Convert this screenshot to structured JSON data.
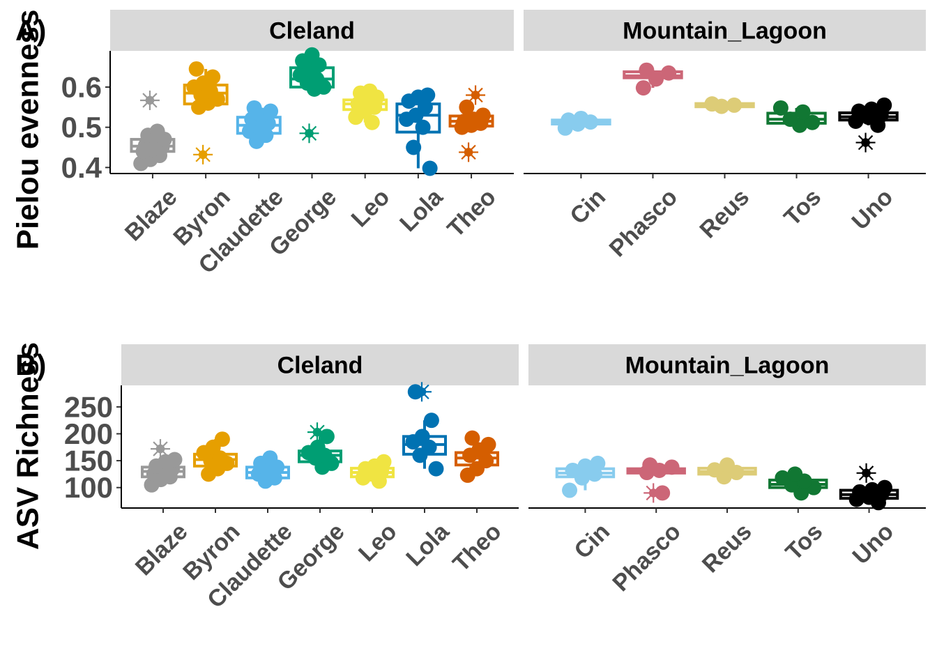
{
  "chart_data": [
    {
      "type": "boxplot",
      "tag": "A)",
      "ylabel": "Pielou evenness",
      "ylim": [
        0.385,
        0.69
      ],
      "yticks": [
        0.4,
        0.5,
        0.6
      ],
      "ytick_labels": [
        "0.4",
        "0.5",
        "0.6"
      ],
      "facets": [
        {
          "name": "Cleland",
          "groups": [
            {
              "name": "Blaze",
              "color": "#999999",
              "q1": 0.44,
              "median": 0.453,
              "q3": 0.47,
              "whisker_low": 0.41,
              "whisker_high": 0.49,
              "points": [
                0.41,
                0.42,
                0.43,
                0.44,
                0.445,
                0.45,
                0.455,
                0.46,
                0.47,
                0.48,
                0.49
              ],
              "outliers": [
                0.567
              ]
            },
            {
              "name": "Byron",
              "color": "#E69F00",
              "q1": 0.558,
              "median": 0.585,
              "q3": 0.605,
              "whisker_low": 0.55,
              "whisker_high": 0.645,
              "points": [
                0.55,
                0.56,
                0.57,
                0.58,
                0.59,
                0.6,
                0.61,
                0.625,
                0.645
              ],
              "outliers": [
                0.432
              ]
            },
            {
              "name": "Claudette",
              "color": "#56B4E9",
              "q1": 0.485,
              "median": 0.505,
              "q3": 0.525,
              "whisker_low": 0.465,
              "whisker_high": 0.548,
              "points": [
                0.465,
                0.48,
                0.49,
                0.5,
                0.51,
                0.52,
                0.53,
                0.54,
                0.548
              ],
              "outliers": []
            },
            {
              "name": "George",
              "color": "#009E73",
              "q1": 0.6,
              "median": 0.62,
              "q3": 0.648,
              "whisker_low": 0.592,
              "whisker_high": 0.68,
              "points": [
                0.595,
                0.6,
                0.61,
                0.62,
                0.63,
                0.645,
                0.655,
                0.665,
                0.68
              ],
              "outliers": [
                0.485
              ]
            },
            {
              "name": "Leo",
              "color": "#F0E442",
              "q1": 0.544,
              "median": 0.558,
              "q3": 0.568,
              "whisker_low": 0.512,
              "whisker_high": 0.59,
              "points": [
                0.512,
                0.525,
                0.54,
                0.55,
                0.558,
                0.565,
                0.575,
                0.585,
                0.59
              ],
              "outliers": []
            },
            {
              "name": "Lola",
              "color": "#0072B2",
              "q1": 0.488,
              "median": 0.53,
              "q3": 0.558,
              "whisker_low": 0.398,
              "whisker_high": 0.58,
              "points": [
                0.398,
                0.45,
                0.5,
                0.52,
                0.53,
                0.55,
                0.565,
                0.575,
                0.58
              ],
              "outliers": []
            },
            {
              "name": "Theo",
              "color": "#D55E00",
              "q1": 0.503,
              "median": 0.515,
              "q3": 0.528,
              "whisker_low": 0.5,
              "whisker_high": 0.55,
              "points": [
                0.5,
                0.505,
                0.51,
                0.515,
                0.52,
                0.53,
                0.55
              ],
              "outliers": [
                0.438,
                0.58
              ]
            }
          ]
        },
        {
          "name": "Mountain_Lagoon",
          "groups": [
            {
              "name": "Cin",
              "color": "#88CCEE",
              "q1": 0.508,
              "median": 0.513,
              "q3": 0.518,
              "whisker_low": 0.498,
              "whisker_high": 0.522,
              "points": [
                0.498,
                0.508,
                0.513,
                0.518,
                0.522
              ],
              "outliers": []
            },
            {
              "name": "Phasco",
              "color": "#CC6677",
              "q1": 0.623,
              "median": 0.628,
              "q3": 0.638,
              "whisker_low": 0.598,
              "whisker_high": 0.642,
              "points": [
                0.598,
                0.62,
                0.635,
                0.642
              ],
              "outliers": []
            },
            {
              "name": "Reus",
              "color": "#DDCC77",
              "q1": 0.551,
              "median": 0.555,
              "q3": 0.559,
              "whisker_low": 0.551,
              "whisker_high": 0.559,
              "points": [
                0.552,
                0.555,
                0.558
              ],
              "outliers": []
            },
            {
              "name": "Tos",
              "color": "#117733",
              "q1": 0.51,
              "median": 0.52,
              "q3": 0.535,
              "whisker_low": 0.505,
              "whisker_high": 0.548,
              "points": [
                0.505,
                0.512,
                0.52,
                0.538,
                0.548
              ],
              "outliers": []
            },
            {
              "name": "Uno",
              "color": "#000000",
              "q1": 0.518,
              "median": 0.526,
              "q3": 0.536,
              "whisker_low": 0.505,
              "whisker_high": 0.555,
              "points": [
                0.505,
                0.515,
                0.525,
                0.53,
                0.54,
                0.545,
                0.555
              ],
              "outliers": [
                0.462
              ]
            }
          ]
        }
      ]
    },
    {
      "type": "boxplot",
      "tag": "B)",
      "ylabel": "ASV Richness",
      "ylim": [
        62,
        290
      ],
      "yticks": [
        100,
        150,
        200,
        250
      ],
      "ytick_labels": [
        "100",
        "150",
        "200",
        "250"
      ],
      "facets": [
        {
          "name": "Cleland",
          "groups": [
            {
              "name": "Blaze",
              "color": "#999999",
              "q1": 120,
              "median": 130,
              "q3": 138,
              "whisker_low": 105,
              "whisker_high": 152,
              "points": [
                105,
                115,
                120,
                125,
                130,
                135,
                140,
                148,
                152
              ],
              "outliers": [
                172
              ]
            },
            {
              "name": "Byron",
              "color": "#E69F00",
              "q1": 140,
              "median": 152,
              "q3": 162,
              "whisker_low": 125,
              "whisker_high": 190,
              "points": [
                125,
                135,
                145,
                150,
                155,
                165,
                175,
                190
              ],
              "outliers": []
            },
            {
              "name": "Claudette",
              "color": "#56B4E9",
              "q1": 118,
              "median": 128,
              "q3": 138,
              "whisker_low": 112,
              "whisker_high": 155,
              "points": [
                112,
                118,
                125,
                130,
                138,
                145,
                155
              ],
              "outliers": []
            },
            {
              "name": "George",
              "color": "#009E73",
              "q1": 148,
              "median": 160,
              "q3": 168,
              "whisker_low": 138,
              "whisker_high": 195,
              "points": [
                138,
                145,
                155,
                160,
                165,
                175,
                195
              ],
              "outliers": [
                203
              ]
            },
            {
              "name": "Leo",
              "color": "#F0E442",
              "q1": 120,
              "median": 128,
              "q3": 136,
              "whisker_low": 112,
              "whisker_high": 148,
              "points": [
                112,
                118,
                125,
                130,
                135,
                140,
                148
              ],
              "outliers": []
            },
            {
              "name": "Lola",
              "color": "#0072B2",
              "q1": 162,
              "median": 180,
              "q3": 195,
              "whisker_low": 135,
              "whisker_high": 225,
              "points": [
                135,
                160,
                175,
                185,
                195,
                225,
                278
              ],
              "outliers": [
                278
              ]
            },
            {
              "name": "Theo",
              "color": "#D55E00",
              "q1": 142,
              "median": 155,
              "q3": 165,
              "whisker_low": 123,
              "whisker_high": 192,
              "points": [
                123,
                135,
                150,
                160,
                170,
                180,
                192
              ],
              "outliers": []
            }
          ]
        },
        {
          "name": "Mountain_Lagoon",
          "groups": [
            {
              "name": "Cin",
              "color": "#88CCEE",
              "q1": 120,
              "median": 127,
              "q3": 135,
              "whisker_low": 95,
              "whisker_high": 145,
              "points": [
                95,
                118,
                125,
                132,
                140,
                145
              ],
              "outliers": []
            },
            {
              "name": "Phasco",
              "color": "#CC6677",
              "q1": 127,
              "median": 131,
              "q3": 135,
              "whisker_low": 127,
              "whisker_high": 142,
              "points": [
                128,
                132,
                138,
                142,
                90
              ],
              "outliers": [
                90
              ]
            },
            {
              "name": "Reus",
              "color": "#DDCC77",
              "q1": 125,
              "median": 130,
              "q3": 136,
              "whisker_low": 120,
              "whisker_high": 142,
              "points": [
                120,
                128,
                133,
                142
              ],
              "outliers": []
            },
            {
              "name": "Tos",
              "color": "#117733",
              "q1": 100,
              "median": 106,
              "q3": 114,
              "whisker_low": 90,
              "whisker_high": 125,
              "points": [
                90,
                100,
                105,
                112,
                118,
                125
              ],
              "outliers": []
            },
            {
              "name": "Uno",
              "color": "#000000",
              "q1": 80,
              "median": 87,
              "q3": 95,
              "whisker_low": 72,
              "whisker_high": 100,
              "points": [
                72,
                78,
                82,
                88,
                92,
                96,
                100
              ],
              "outliers": [
                127
              ]
            }
          ]
        }
      ]
    }
  ]
}
